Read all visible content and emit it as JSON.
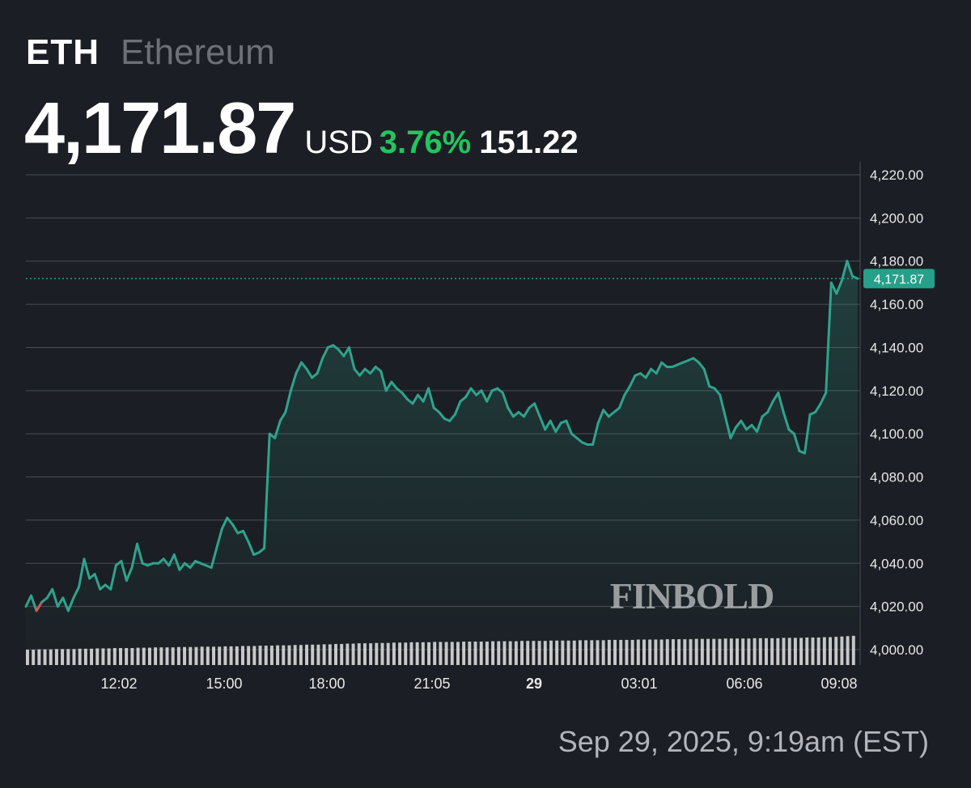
{
  "header": {
    "symbol": "ETH",
    "name": "Ethereum",
    "price": "4,171.87",
    "currency": "USD",
    "change_percent": "3.76%",
    "change_absolute": "151.22"
  },
  "timestamp": "Sep 29, 2025, 9:19am (EST)",
  "watermark": "FINBOLD",
  "colors": {
    "background": "#1b1e24",
    "line": "#2fa38c",
    "below_baseline": "#d9534f",
    "positive_change": "#22c55e",
    "price_tag": "#26a08a",
    "grid": "#4a4e57",
    "volume": "#e6e6e6"
  },
  "chart_data": {
    "type": "area",
    "ylim": [
      4000,
      4220
    ],
    "ytick_labels": [
      "4,000.00",
      "4,020.00",
      "4,040.00",
      "4,060.00",
      "4,080.00",
      "4,100.00",
      "4,120.00",
      "4,140.00",
      "4,160.00",
      "4,180.00",
      "4,200.00",
      "4,220.00"
    ],
    "yticks": [
      4000,
      4020,
      4040,
      4060,
      4080,
      4100,
      4120,
      4140,
      4160,
      4180,
      4200,
      4220
    ],
    "xtick_labels": [
      {
        "label": "12:02",
        "bold": false
      },
      {
        "label": "15:00",
        "bold": false
      },
      {
        "label": "18:00",
        "bold": false
      },
      {
        "label": "21:05",
        "bold": false
      },
      {
        "label": "29",
        "bold": true
      },
      {
        "label": "03:01",
        "bold": false
      },
      {
        "label": "06:06",
        "bold": false
      },
      {
        "label": "09:08",
        "bold": false
      }
    ],
    "baseline_value": 4020.65,
    "last_price_value": 4171.87,
    "last_price_label": "4,171.87",
    "price_series": [
      4020,
      4025,
      4018,
      4022,
      4024,
      4028,
      4020,
      4024,
      4018,
      4024,
      4029,
      4042,
      4033,
      4035,
      4028,
      4030,
      4028,
      4039,
      4041,
      4032,
      4038,
      4049,
      4040,
      4039,
      4040,
      4040,
      4042,
      4039,
      4044,
      4037,
      4040,
      4038,
      4041,
      4040,
      4039,
      4038,
      4047,
      4056,
      4061,
      4058,
      4054,
      4055,
      4050,
      4044,
      4045,
      4047,
      4100,
      4098,
      4106,
      4110,
      4120,
      4128,
      4133,
      4130,
      4126,
      4128,
      4135,
      4140,
      4141,
      4139,
      4136,
      4140,
      4130,
      4127,
      4130,
      4128,
      4131,
      4129,
      4120,
      4124,
      4121,
      4119,
      4116,
      4114,
      4118,
      4115,
      4121,
      4112,
      4110,
      4107,
      4106,
      4109,
      4115,
      4117,
      4121,
      4118,
      4120,
      4115,
      4120,
      4121,
      4119,
      4112,
      4108,
      4110,
      4108,
      4112,
      4114,
      4108,
      4102,
      4106,
      4101,
      4105,
      4106,
      4100,
      4098,
      4096,
      4095,
      4095,
      4105,
      4111,
      4108,
      4110,
      4112,
      4118,
      4122,
      4127,
      4128,
      4126,
      4130,
      4128,
      4133,
      4131,
      4131,
      4132,
      4133,
      4134,
      4135,
      4133,
      4130,
      4122,
      4121,
      4118,
      4108,
      4098,
      4103,
      4106,
      4102,
      4104,
      4101,
      4108,
      4110,
      4115,
      4119,
      4110,
      4102,
      4100,
      4092,
      4091,
      4109,
      4110,
      4114,
      4119,
      4170,
      4165,
      4171,
      4180,
      4173,
      4171.87
    ],
    "volume_series": [
      4.5,
      4.5,
      4.6,
      4.6,
      4.6,
      4.7,
      4.7,
      4.7,
      4.7,
      4.8,
      4.8,
      4.8,
      4.9,
      4.9,
      4.9,
      5.0,
      5.0,
      5.0,
      5.0,
      5.1,
      5.1,
      5.1,
      5.2,
      5.2,
      5.2,
      5.2,
      5.3,
      5.3,
      5.3,
      5.3,
      5.4,
      5.4,
      5.4,
      5.4,
      5.5,
      5.5,
      5.5,
      5.6,
      5.6,
      5.6,
      5.7,
      5.7,
      5.7,
      5.8,
      5.8,
      5.8,
      5.9,
      5.9,
      6.0,
      6.0,
      6.0,
      6.1,
      6.1,
      6.2,
      6.2,
      6.3,
      6.3,
      6.4,
      6.4,
      6.4,
      6.5,
      6.5,
      6.5,
      6.6,
      6.6,
      6.6,
      6.7,
      6.7,
      6.7,
      6.7,
      6.8,
      6.8,
      6.8,
      6.8,
      6.8,
      6.9,
      6.9,
      6.9,
      6.9,
      6.9,
      7.0,
      7.0,
      7.0,
      7.0,
      7.0,
      7.1,
      7.1,
      7.1,
      7.1,
      7.1,
      7.2,
      7.2,
      7.2,
      7.2,
      7.2,
      7.3,
      7.3,
      7.3,
      7.3,
      7.3,
      7.4,
      7.4,
      7.4,
      7.4,
      7.4,
      7.5,
      7.5,
      7.5,
      7.5,
      7.5,
      7.6,
      7.6,
      7.6,
      7.6,
      7.6,
      7.7,
      7.7,
      7.7,
      7.7,
      7.7,
      7.8,
      7.8,
      7.8,
      7.8,
      7.8,
      7.9,
      7.9,
      7.9,
      7.9,
      7.9,
      8.0,
      8.0,
      8.0,
      8.0,
      8.1,
      8.1,
      8.1,
      8.2,
      8.2,
      8.3,
      8.4,
      8.5,
      8.6
    ]
  }
}
